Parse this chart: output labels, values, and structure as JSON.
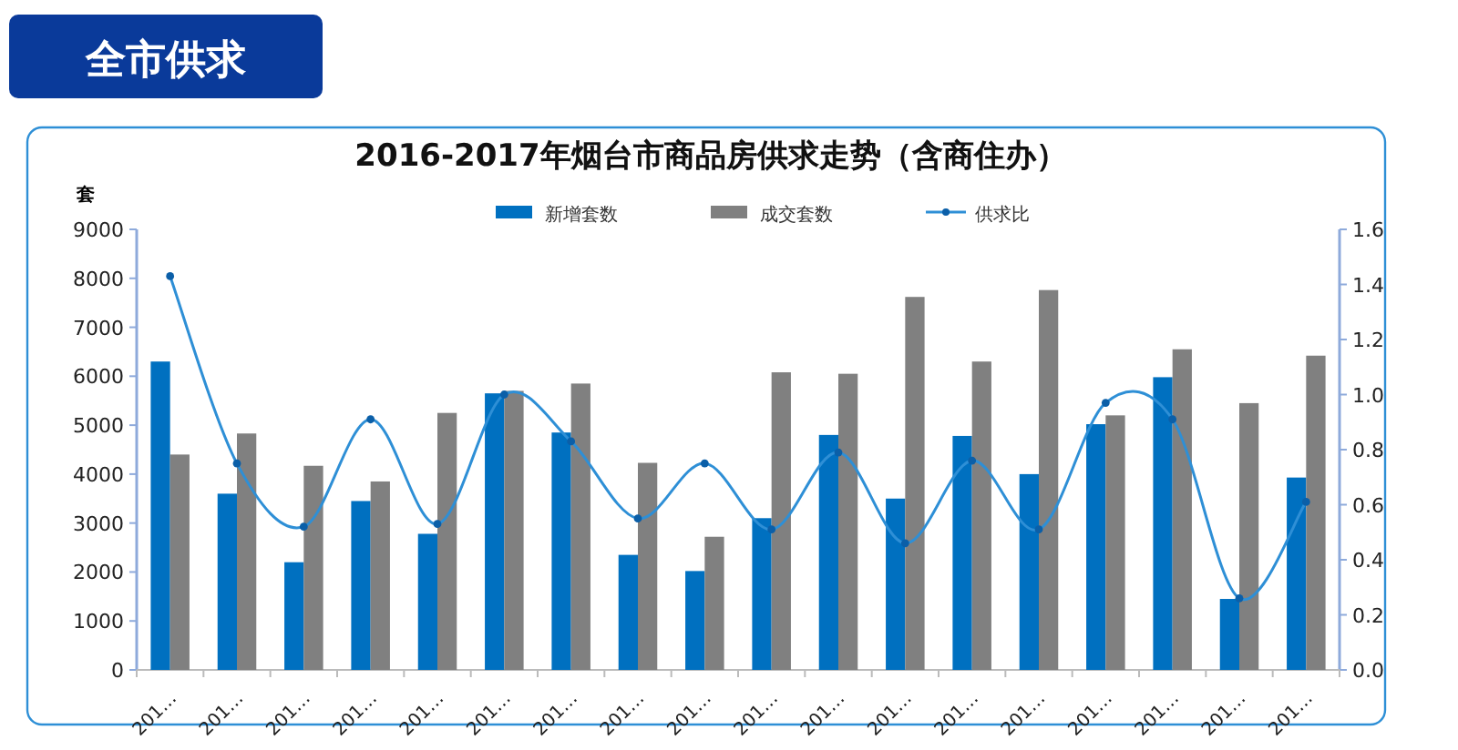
{
  "chart_data": {
    "type": "bar",
    "title": "2016-2017年烟台市商品房供求走势（含商住办）",
    "annotations": [
      "全市供求"
    ],
    "ylabel": "套",
    "categories": [
      "201…",
      "201…",
      "201…",
      "201…",
      "201…",
      "201…",
      "201…",
      "201…",
      "201…",
      "201…",
      "201…",
      "201…",
      "201…",
      "201…",
      "201…",
      "201…",
      "201…",
      "201…"
    ],
    "series": [
      {
        "name": "新增套数",
        "color": "#0070c0",
        "values": [
          6300,
          3600,
          2200,
          3450,
          2780,
          5650,
          4850,
          2350,
          2020,
          3100,
          4800,
          3500,
          4780,
          4000,
          5020,
          5980,
          1450,
          3930
        ]
      },
      {
        "name": "成交套数",
        "color": "#808080",
        "values": [
          4400,
          4830,
          4170,
          3850,
          5250,
          5700,
          5850,
          4230,
          2720,
          6080,
          6050,
          7620,
          6300,
          7760,
          5200,
          6550,
          5450,
          6420
        ]
      },
      {
        "name": "供求比",
        "type": "line",
        "axis": "y2",
        "color": "#2e8fd6",
        "values": [
          1.43,
          0.75,
          0.52,
          0.91,
          0.53,
          1.0,
          0.83,
          0.55,
          0.75,
          0.51,
          0.79,
          0.46,
          0.76,
          0.51,
          0.97,
          0.91,
          0.26,
          0.61
        ]
      }
    ],
    "ylim": [
      0,
      9000
    ],
    "yticks": [
      0,
      1000,
      2000,
      3000,
      4000,
      5000,
      6000,
      7000,
      8000,
      9000
    ],
    "y2lim": [
      0,
      1.6
    ],
    "y2ticks": [
      {
        "value": 0,
        "label": "0.0"
      },
      {
        "value": 0.2,
        "label": "0.2"
      },
      {
        "value": 0.4,
        "label": "0.4"
      },
      {
        "value": 0.6,
        "label": "0.6"
      },
      {
        "value": 0.8,
        "label": "0.8"
      },
      {
        "value": 1.0,
        "label": "1.0"
      },
      {
        "value": 1.2,
        "label": "1.2"
      },
      {
        "value": 1.4,
        "label": "1.4"
      },
      {
        "value": 1.6,
        "label": "1.6"
      }
    ],
    "legend": "top",
    "grid": false,
    "marker": "circle",
    "line_style": "solid"
  }
}
